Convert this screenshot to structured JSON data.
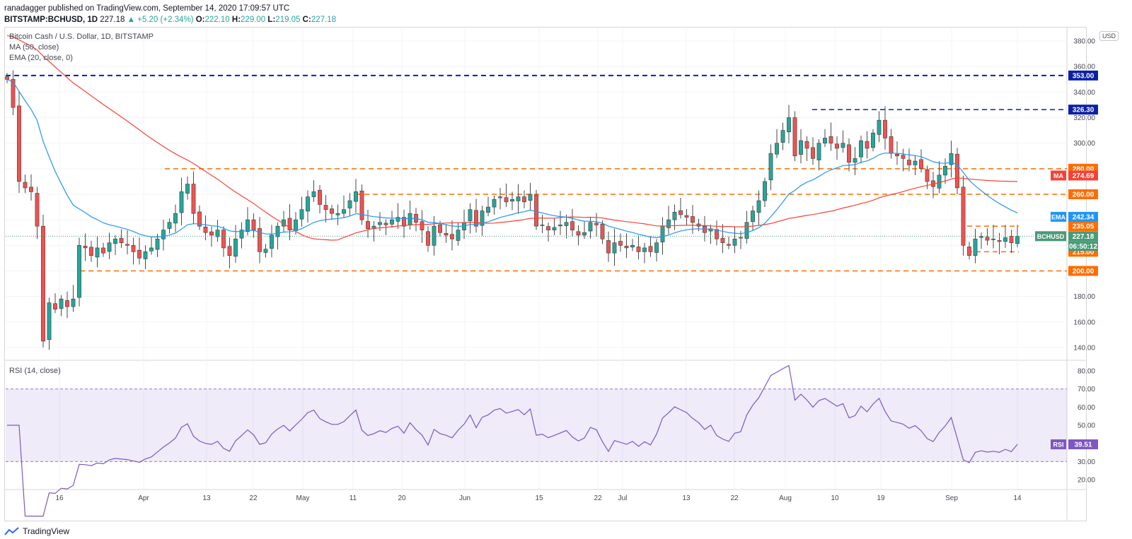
{
  "header": {
    "line1": "ranadagger published on TradingView.com, September 14, 2020 17:09:57 UTC",
    "symbol": "BITSTAMP:BCHUSD, 1D",
    "last": "227.18",
    "change": "+5.20 (+2.34%)",
    "o_label": "O:",
    "o": "222.10",
    "h_label": "H:",
    "h": "229.00",
    "l_label": "L:",
    "l": "219.05",
    "c_label": "C:",
    "c": "227.18"
  },
  "legend": {
    "title": "Bitcoin Cash / U.S. Dollar, 1D, BITSTAMP",
    "ma": "MA (50, close)",
    "ema": "EMA (20, close, 0)",
    "rsi": "RSI (14, close)"
  },
  "currency": "USD",
  "brand": "TradingView",
  "colors": {
    "up": "#26a69a",
    "down": "#ef5350",
    "ema": "#2196f3",
    "ma": "#f44336",
    "support": "#ff6d00",
    "resistance": "#0d1fa8",
    "rsi": "#7e57c2"
  },
  "chart_data": {
    "type": "candlestick",
    "price_axis": {
      "min": 130,
      "max": 390,
      "ticks": [
        140,
        160,
        180,
        200,
        220,
        240,
        260,
        280,
        300,
        320,
        340,
        360,
        380
      ]
    },
    "rsi_axis": {
      "min": 15,
      "max": 85,
      "ticks": [
        20,
        30,
        40,
        50,
        60,
        70,
        80
      ]
    },
    "x_labels": [
      "16",
      "Apr",
      "13",
      "22",
      "May",
      "11",
      "20",
      "Jun",
      "15",
      "22",
      "Jul",
      "13",
      "22",
      "Aug",
      "10",
      "19",
      "Sep",
      "14"
    ],
    "horizontal_levels": [
      {
        "value": 353.0,
        "label": "353.00",
        "style": "dashed",
        "color": "#0d1fa8",
        "from": 0.0
      },
      {
        "value": 326.3,
        "label": "326.30",
        "style": "dashed",
        "color": "#0d1fa8",
        "from": 0.76
      },
      {
        "value": 280.0,
        "label": "280.00",
        "style": "dashed",
        "color": "#ff6d00",
        "from": 0.15
      },
      {
        "value": 260.0,
        "label": "260.00",
        "style": "dashed",
        "color": "#ff6d00",
        "from": 0.33
      },
      {
        "value": 235.05,
        "label": "235.05",
        "style": "dashed",
        "color": "#ff6d00",
        "from": 0.906
      },
      {
        "value": 215.0,
        "label": "215.00",
        "style": "dashed",
        "color": "#ff6d00",
        "from": 0.906
      },
      {
        "value": 200.0,
        "label": "200.00",
        "style": "dashed",
        "color": "#ff6d00",
        "from": 0.07
      }
    ],
    "last_labels": [
      {
        "name": "MA",
        "value": "274.69",
        "color": "#f44336"
      },
      {
        "name": "EMA",
        "value": "242.34",
        "color": "#2196f3"
      },
      {
        "name": "BCHUSD",
        "value": "227.18",
        "color": "#4a9a78"
      },
      {
        "name": "countdown",
        "value": "06:50:12",
        "color": "#4a9a78"
      }
    ],
    "rsi_last": {
      "name": "RSI",
      "value": "39.51"
    },
    "closes": [
      350,
      328,
      270,
      265,
      262,
      235,
      145,
      175,
      170,
      178,
      172,
      178,
      220,
      218,
      212,
      218,
      214,
      222,
      225,
      222,
      220,
      215,
      210,
      215,
      218,
      225,
      232,
      238,
      245,
      262,
      268,
      245,
      235,
      230,
      228,
      232,
      218,
      212,
      225,
      232,
      240,
      232,
      215,
      217,
      228,
      235,
      240,
      232,
      240,
      248,
      258,
      262,
      252,
      248,
      245,
      245,
      248,
      255,
      262,
      240,
      233,
      235,
      238,
      236,
      240,
      242,
      235,
      245,
      238,
      232,
      220,
      235,
      230,
      228,
      225,
      232,
      238,
      248,
      235,
      247,
      250,
      256,
      258,
      254,
      256,
      258,
      254,
      260,
      235,
      236,
      232,
      234,
      236,
      238,
      232,
      228,
      230,
      238,
      236,
      225,
      214,
      222,
      220,
      218,
      220,
      215,
      218,
      215,
      222,
      235,
      240,
      246,
      244,
      242,
      238,
      235,
      230,
      233,
      225,
      222,
      220,
      225,
      226,
      238,
      247,
      255,
      270,
      292,
      300,
      310,
      320,
      290,
      302,
      296,
      288,
      300,
      304,
      300,
      296,
      300,
      285,
      288,
      302,
      296,
      308,
      318,
      304,
      292,
      290,
      288,
      283,
      286,
      280,
      270,
      266,
      275,
      282,
      292,
      265,
      220,
      212,
      225,
      227,
      224,
      225,
      223,
      226,
      222,
      227
    ],
    "ema_last": 242.34,
    "ma_last": 274.69,
    "rsi_last_value": 39.51
  }
}
